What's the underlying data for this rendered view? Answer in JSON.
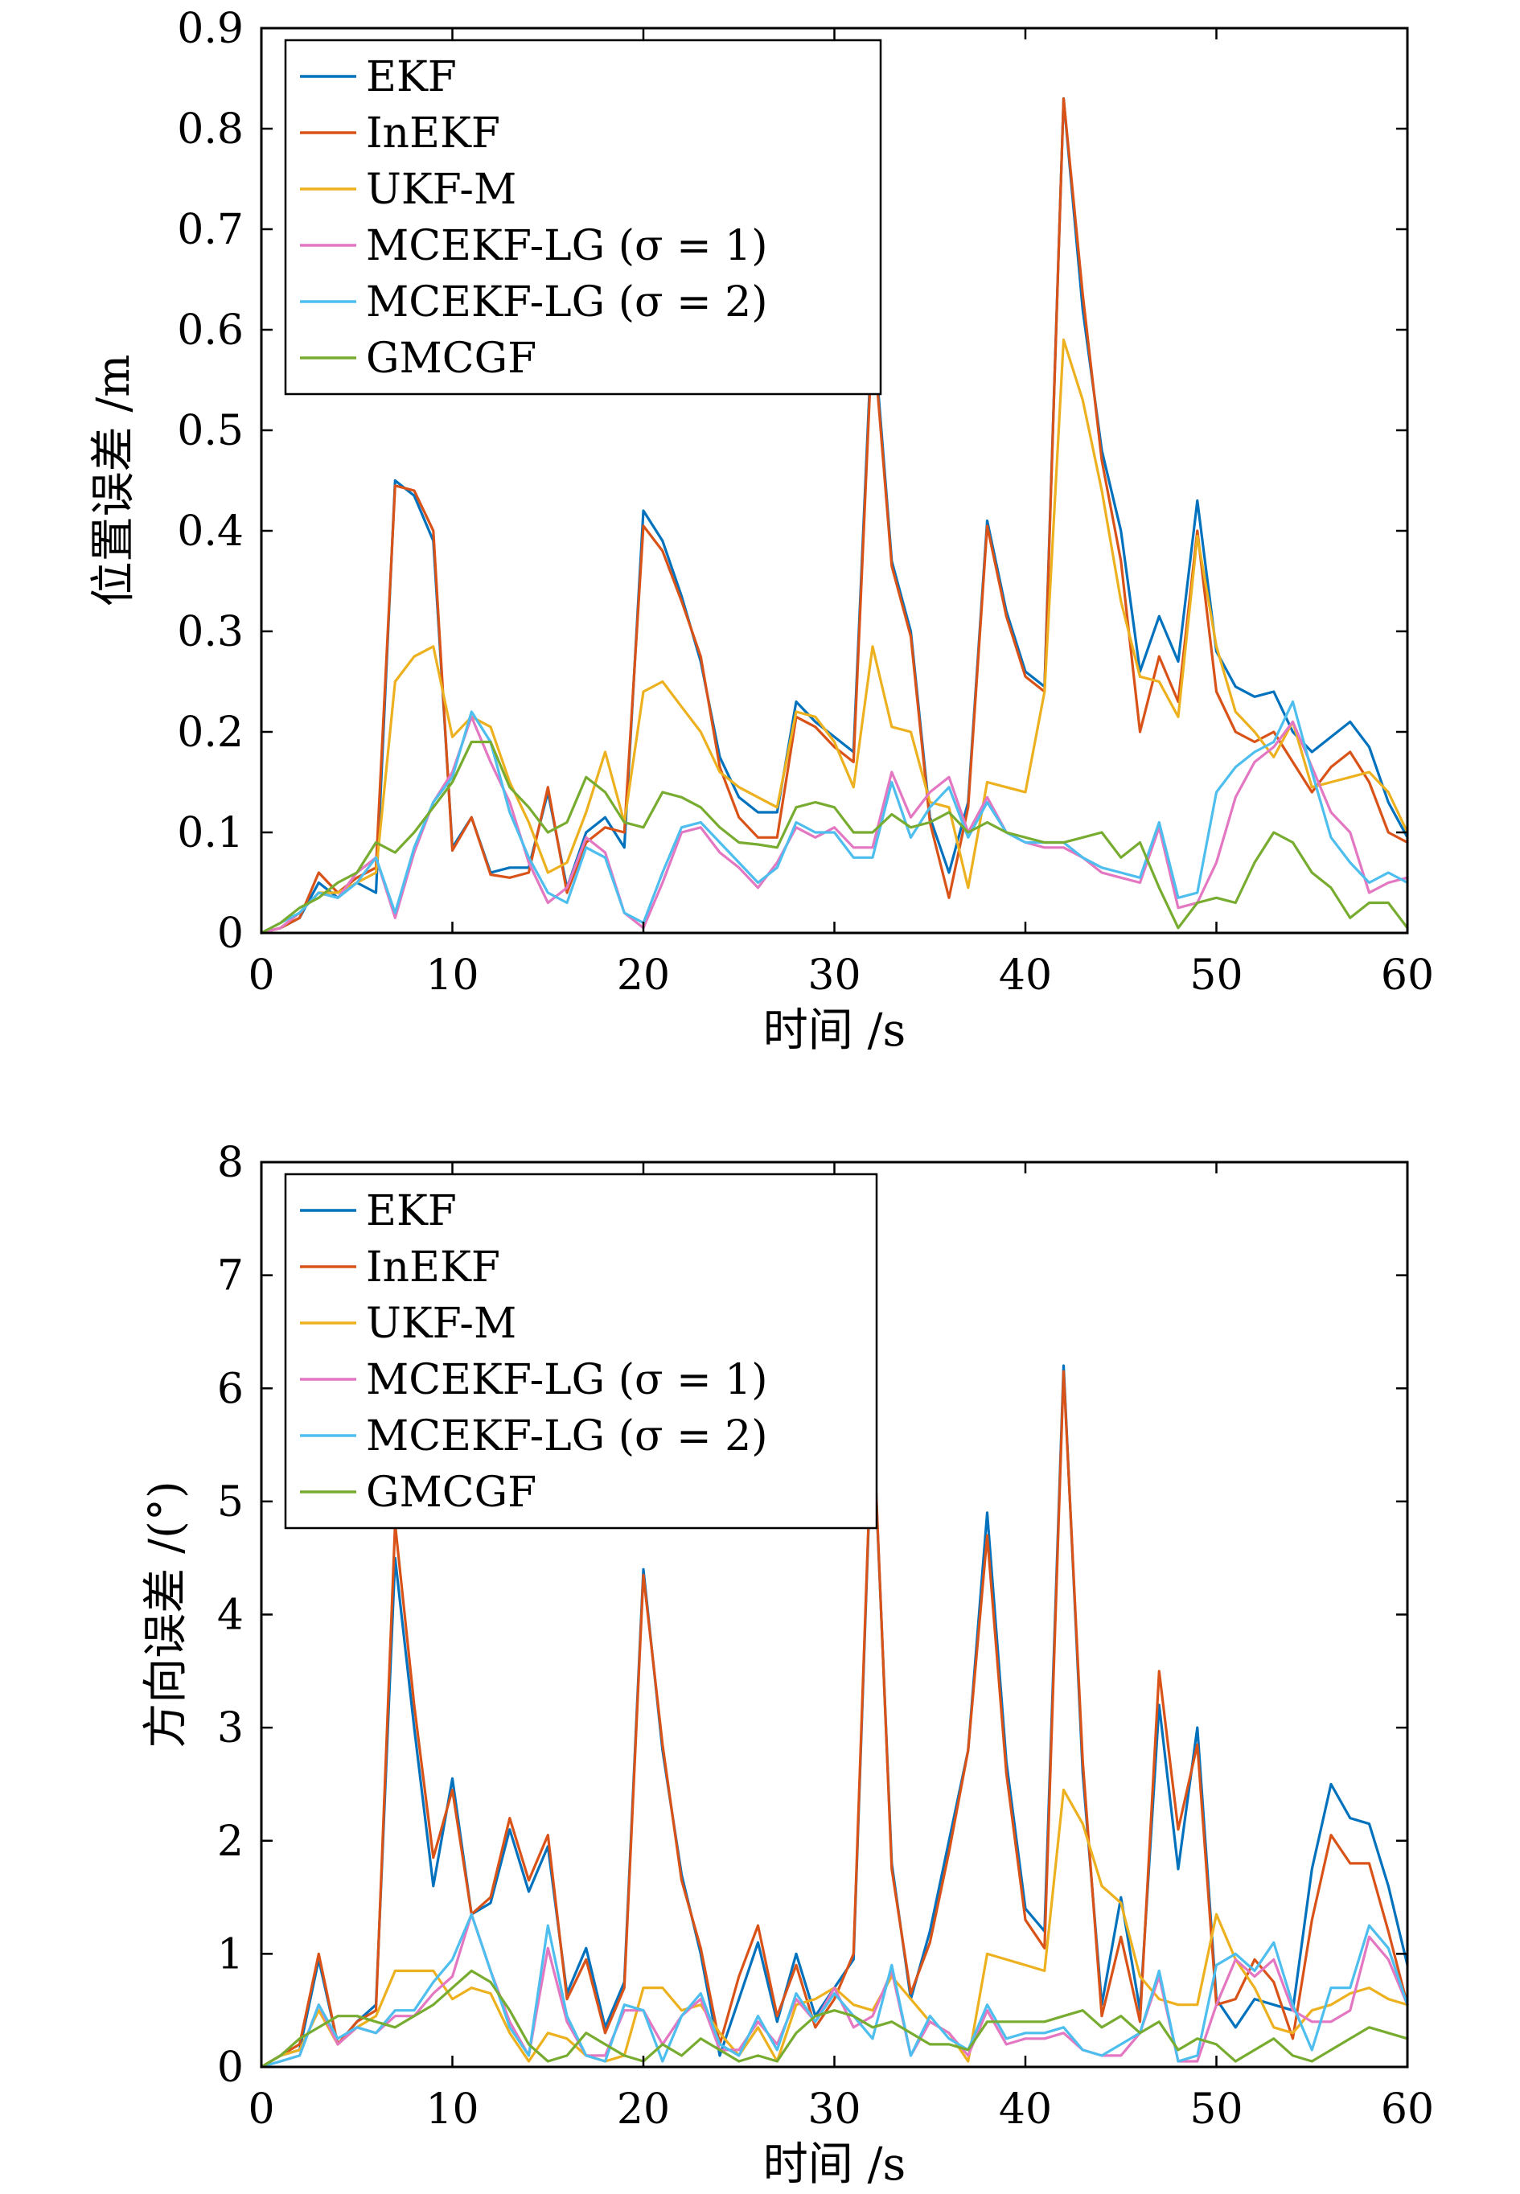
{
  "chart_data": [
    {
      "type": "line",
      "xlabel": "时间 /s",
      "ylabel": "位置误差 /m",
      "xlim": [
        0,
        60
      ],
      "ylim": [
        0,
        0.9
      ],
      "xticks": [
        "0",
        "10",
        "20",
        "30",
        "40",
        "50",
        "60"
      ],
      "yticks": [
        "0",
        "0.1",
        "0.2",
        "0.3",
        "0.4",
        "0.5",
        "0.6",
        "0.7",
        "0.8",
        "0.9"
      ],
      "legend_position": "top-left",
      "grid": false,
      "x": [
        0,
        1,
        2,
        3,
        4,
        5,
        6,
        7,
        8,
        9,
        10,
        11,
        12,
        13,
        14,
        15,
        16,
        17,
        18,
        19,
        20,
        21,
        22,
        23,
        24,
        25,
        26,
        27,
        28,
        29,
        30,
        31,
        32,
        33,
        34,
        35,
        36,
        37,
        38,
        39,
        40,
        41,
        42,
        43,
        44,
        45,
        46,
        47,
        48,
        49,
        50,
        51,
        52,
        53,
        54,
        55,
        56,
        57,
        58,
        59,
        60
      ],
      "series": [
        {
          "name": "EKF",
          "color": "#0072BD",
          "values": [
            0,
            0.005,
            0.015,
            0.05,
            0.035,
            0.05,
            0.04,
            0.45,
            0.435,
            0.39,
            0.085,
            0.115,
            0.06,
            0.065,
            0.065,
            0.14,
            0.045,
            0.1,
            0.115,
            0.085,
            0.42,
            0.39,
            0.335,
            0.27,
            0.175,
            0.135,
            0.12,
            0.12,
            0.23,
            0.21,
            0.195,
            0.18,
            0.61,
            0.37,
            0.3,
            0.115,
            0.06,
            0.13,
            0.41,
            0.32,
            0.26,
            0.245,
            0.83,
            0.62,
            0.48,
            0.4,
            0.26,
            0.315,
            0.27,
            0.43,
            0.28,
            0.245,
            0.235,
            0.24,
            0.2,
            0.18,
            0.195,
            0.21,
            0.185,
            0.13,
            0.095
          ]
        },
        {
          "name": "InEKF",
          "color": "#D95319",
          "values": [
            0,
            0.005,
            0.015,
            0.06,
            0.04,
            0.055,
            0.065,
            0.445,
            0.44,
            0.4,
            0.082,
            0.115,
            0.058,
            0.055,
            0.06,
            0.145,
            0.04,
            0.09,
            0.105,
            0.1,
            0.405,
            0.38,
            0.33,
            0.275,
            0.165,
            0.115,
            0.095,
            0.095,
            0.215,
            0.205,
            0.185,
            0.17,
            0.6,
            0.365,
            0.295,
            0.11,
            0.035,
            0.125,
            0.405,
            0.315,
            0.255,
            0.24,
            0.83,
            0.635,
            0.47,
            0.37,
            0.2,
            0.275,
            0.23,
            0.4,
            0.24,
            0.2,
            0.19,
            0.2,
            0.17,
            0.14,
            0.165,
            0.18,
            0.15,
            0.1,
            0.09
          ]
        },
        {
          "name": "UKF-M",
          "color": "#EDB120",
          "values": [
            0,
            0.005,
            0.02,
            0.04,
            0.04,
            0.05,
            0.06,
            0.25,
            0.275,
            0.285,
            0.195,
            0.215,
            0.205,
            0.15,
            0.11,
            0.06,
            0.07,
            0.12,
            0.18,
            0.11,
            0.24,
            0.25,
            0.225,
            0.2,
            0.16,
            0.145,
            0.135,
            0.125,
            0.22,
            0.215,
            0.19,
            0.145,
            0.285,
            0.205,
            0.2,
            0.13,
            0.125,
            0.045,
            0.15,
            0.145,
            0.14,
            0.24,
            0.59,
            0.53,
            0.44,
            0.33,
            0.255,
            0.25,
            0.215,
            0.395,
            0.285,
            0.22,
            0.2,
            0.175,
            0.21,
            0.145,
            0.15,
            0.155,
            0.16,
            0.14,
            0.1
          ]
        },
        {
          "name": "MCEKF-LG (σ = 1)",
          "color": "#E377C2",
          "values": [
            0,
            0.005,
            0.02,
            0.04,
            0.035,
            0.06,
            0.075,
            0.015,
            0.08,
            0.13,
            0.16,
            0.215,
            0.17,
            0.13,
            0.07,
            0.03,
            0.045,
            0.095,
            0.08,
            0.02,
            0.005,
            0.05,
            0.1,
            0.105,
            0.08,
            0.065,
            0.045,
            0.07,
            0.105,
            0.095,
            0.105,
            0.085,
            0.085,
            0.16,
            0.115,
            0.14,
            0.155,
            0.1,
            0.135,
            0.1,
            0.09,
            0.085,
            0.085,
            0.075,
            0.06,
            0.055,
            0.05,
            0.105,
            0.025,
            0.03,
            0.07,
            0.135,
            0.17,
            0.185,
            0.21,
            0.165,
            0.12,
            0.1,
            0.04,
            0.05,
            0.055
          ]
        },
        {
          "name": "MCEKF-LG (σ = 2)",
          "color": "#4DBEEE",
          "values": [
            0,
            0.01,
            0.02,
            0.04,
            0.035,
            0.05,
            0.075,
            0.02,
            0.085,
            0.13,
            0.155,
            0.22,
            0.19,
            0.12,
            0.075,
            0.04,
            0.03,
            0.085,
            0.075,
            0.02,
            0.01,
            0.06,
            0.105,
            0.11,
            0.09,
            0.07,
            0.05,
            0.065,
            0.11,
            0.1,
            0.1,
            0.075,
            0.075,
            0.15,
            0.095,
            0.125,
            0.145,
            0.095,
            0.13,
            0.1,
            0.09,
            0.09,
            0.09,
            0.075,
            0.065,
            0.06,
            0.055,
            0.11,
            0.035,
            0.04,
            0.14,
            0.165,
            0.18,
            0.19,
            0.23,
            0.16,
            0.095,
            0.07,
            0.05,
            0.06,
            0.05
          ]
        },
        {
          "name": "GMCGF",
          "color": "#77AC30",
          "values": [
            0,
            0.01,
            0.025,
            0.035,
            0.05,
            0.06,
            0.09,
            0.08,
            0.1,
            0.125,
            0.15,
            0.19,
            0.19,
            0.145,
            0.125,
            0.1,
            0.11,
            0.155,
            0.14,
            0.11,
            0.105,
            0.14,
            0.135,
            0.125,
            0.105,
            0.09,
            0.088,
            0.085,
            0.125,
            0.13,
            0.125,
            0.1,
            0.1,
            0.118,
            0.105,
            0.11,
            0.12,
            0.1,
            0.11,
            0.1,
            0.095,
            0.09,
            0.09,
            0.095,
            0.1,
            0.075,
            0.09,
            0.045,
            0.005,
            0.03,
            0.035,
            0.03,
            0.07,
            0.1,
            0.09,
            0.06,
            0.045,
            0.015,
            0.03,
            0.03,
            0.005
          ]
        }
      ]
    },
    {
      "type": "line",
      "xlabel": "时间 /s",
      "ylabel": "方向误差 /(°)",
      "xlim": [
        0,
        60
      ],
      "ylim": [
        0,
        8
      ],
      "xticks": [
        "0",
        "10",
        "20",
        "30",
        "40",
        "50",
        "60"
      ],
      "yticks": [
        "0",
        "1",
        "2",
        "3",
        "4",
        "5",
        "6",
        "7",
        "8"
      ],
      "legend_position": "top-left",
      "grid": false,
      "x": [
        0,
        1,
        2,
        3,
        4,
        5,
        6,
        7,
        8,
        9,
        10,
        11,
        12,
        13,
        14,
        15,
        16,
        17,
        18,
        19,
        20,
        21,
        22,
        23,
        24,
        25,
        26,
        27,
        28,
        29,
        30,
        31,
        32,
        33,
        34,
        35,
        36,
        37,
        38,
        39,
        40,
        41,
        42,
        43,
        44,
        45,
        46,
        47,
        48,
        49,
        50,
        51,
        52,
        53,
        54,
        55,
        56,
        57,
        58,
        59,
        60
      ],
      "series": [
        {
          "name": "EKF",
          "color": "#0072BD",
          "values": [
            0,
            0.1,
            0.15,
            0.95,
            0.2,
            0.4,
            0.55,
            4.5,
            3,
            1.6,
            2.55,
            1.35,
            1.45,
            2.1,
            1.55,
            1.95,
            0.65,
            1.05,
            0.35,
            0.75,
            4.4,
            2.8,
            1.7,
            1,
            0.1,
            0.6,
            1.1,
            0.4,
            1,
            0.45,
            0.7,
            0.95,
            5.8,
            1.8,
            0.6,
            1.2,
            2,
            2.8,
            4.9,
            2.7,
            1.4,
            1.2,
            6.2,
            2.6,
            0.55,
            1.5,
            0.5,
            3.2,
            1.75,
            3,
            0.6,
            0.35,
            0.6,
            0.55,
            0.5,
            1.75,
            2.5,
            2.2,
            2.15,
            1.6,
            0.9
          ]
        },
        {
          "name": "InEKF",
          "color": "#D95319",
          "values": [
            0,
            0.1,
            0.2,
            1,
            0.2,
            0.4,
            0.5,
            4.8,
            3.2,
            1.85,
            2.45,
            1.35,
            1.5,
            2.2,
            1.65,
            2.05,
            0.6,
            0.95,
            0.3,
            0.7,
            4.35,
            2.85,
            1.65,
            1.05,
            0.2,
            0.8,
            1.25,
            0.45,
            0.9,
            0.35,
            0.6,
            1,
            5.85,
            1.75,
            0.65,
            1.1,
            1.9,
            2.8,
            4.7,
            2.6,
            1.3,
            1.05,
            6.15,
            2.7,
            0.45,
            1.15,
            0.4,
            3.5,
            2.1,
            2.85,
            0.55,
            0.6,
            0.95,
            0.75,
            0.25,
            1.3,
            2.05,
            1.8,
            1.8,
            1.2,
            0.55
          ]
        },
        {
          "name": "UKF-M",
          "color": "#EDB120",
          "values": [
            0,
            0.1,
            0.15,
            0.5,
            0.2,
            0.35,
            0.45,
            0.85,
            0.85,
            0.85,
            0.6,
            0.7,
            0.65,
            0.3,
            0.05,
            0.3,
            0.25,
            0.1,
            0.05,
            0.1,
            0.7,
            0.7,
            0.5,
            0.55,
            0.3,
            0.1,
            0.35,
            0.05,
            0.55,
            0.6,
            0.7,
            0.55,
            0.5,
            0.8,
            0.6,
            0.4,
            0.3,
            0.05,
            1,
            0.95,
            0.9,
            0.85,
            2.45,
            2.15,
            1.6,
            1.45,
            0.8,
            0.6,
            0.55,
            0.55,
            1.35,
            0.95,
            0.7,
            0.35,
            0.3,
            0.5,
            0.55,
            0.65,
            0.7,
            0.6,
            0.55
          ]
        },
        {
          "name": "MCEKF-LG (σ = 1)",
          "color": "#E377C2",
          "values": [
            0,
            0.05,
            0.1,
            0.55,
            0.2,
            0.35,
            0.3,
            0.45,
            0.45,
            0.65,
            0.8,
            1.35,
            0.85,
            0.4,
            0.1,
            1.05,
            0.4,
            0.1,
            0.1,
            0.5,
            0.5,
            0.2,
            0.45,
            0.6,
            0.15,
            0.15,
            0.4,
            0.2,
            0.6,
            0.4,
            0.7,
            0.35,
            0.45,
            0.85,
            0.1,
            0.4,
            0.3,
            0.1,
            0.5,
            0.2,
            0.25,
            0.25,
            0.3,
            0.15,
            0.1,
            0.1,
            0.3,
            0.8,
            0.05,
            0.05,
            0.55,
            0.95,
            0.8,
            0.95,
            0.5,
            0.4,
            0.4,
            0.5,
            1.15,
            0.95,
            0.55
          ]
        },
        {
          "name": "MCEKF-LG (σ = 2)",
          "color": "#4DBEEE",
          "values": [
            0,
            0.05,
            0.1,
            0.55,
            0.25,
            0.35,
            0.3,
            0.5,
            0.5,
            0.75,
            0.95,
            1.35,
            0.85,
            0.35,
            0.1,
            1.25,
            0.45,
            0.1,
            0.05,
            0.55,
            0.5,
            0.05,
            0.45,
            0.65,
            0.2,
            0.1,
            0.45,
            0.15,
            0.65,
            0.4,
            0.65,
            0.45,
            0.25,
            0.9,
            0.1,
            0.45,
            0.25,
            0.15,
            0.55,
            0.25,
            0.3,
            0.3,
            0.35,
            0.15,
            0.1,
            0.2,
            0.3,
            0.85,
            0.05,
            0.1,
            0.9,
            1,
            0.85,
            1.1,
            0.55,
            0.15,
            0.7,
            0.7,
            1.25,
            1.05,
            0.55
          ]
        },
        {
          "name": "GMCGF",
          "color": "#77AC30",
          "values": [
            0,
            0.1,
            0.25,
            0.35,
            0.45,
            0.45,
            0.4,
            0.35,
            0.45,
            0.55,
            0.7,
            0.85,
            0.75,
            0.5,
            0.2,
            0.05,
            0.1,
            0.3,
            0.2,
            0.1,
            0.05,
            0.2,
            0.1,
            0.25,
            0.15,
            0.05,
            0.1,
            0.05,
            0.3,
            0.45,
            0.5,
            0.45,
            0.35,
            0.4,
            0.3,
            0.2,
            0.2,
            0.15,
            0.4,
            0.4,
            0.4,
            0.4,
            0.45,
            0.5,
            0.35,
            0.45,
            0.3,
            0.4,
            0.15,
            0.25,
            0.2,
            0.05,
            0.15,
            0.25,
            0.1,
            0.05,
            0.15,
            0.25,
            0.35,
            0.3,
            0.25
          ]
        }
      ]
    }
  ]
}
